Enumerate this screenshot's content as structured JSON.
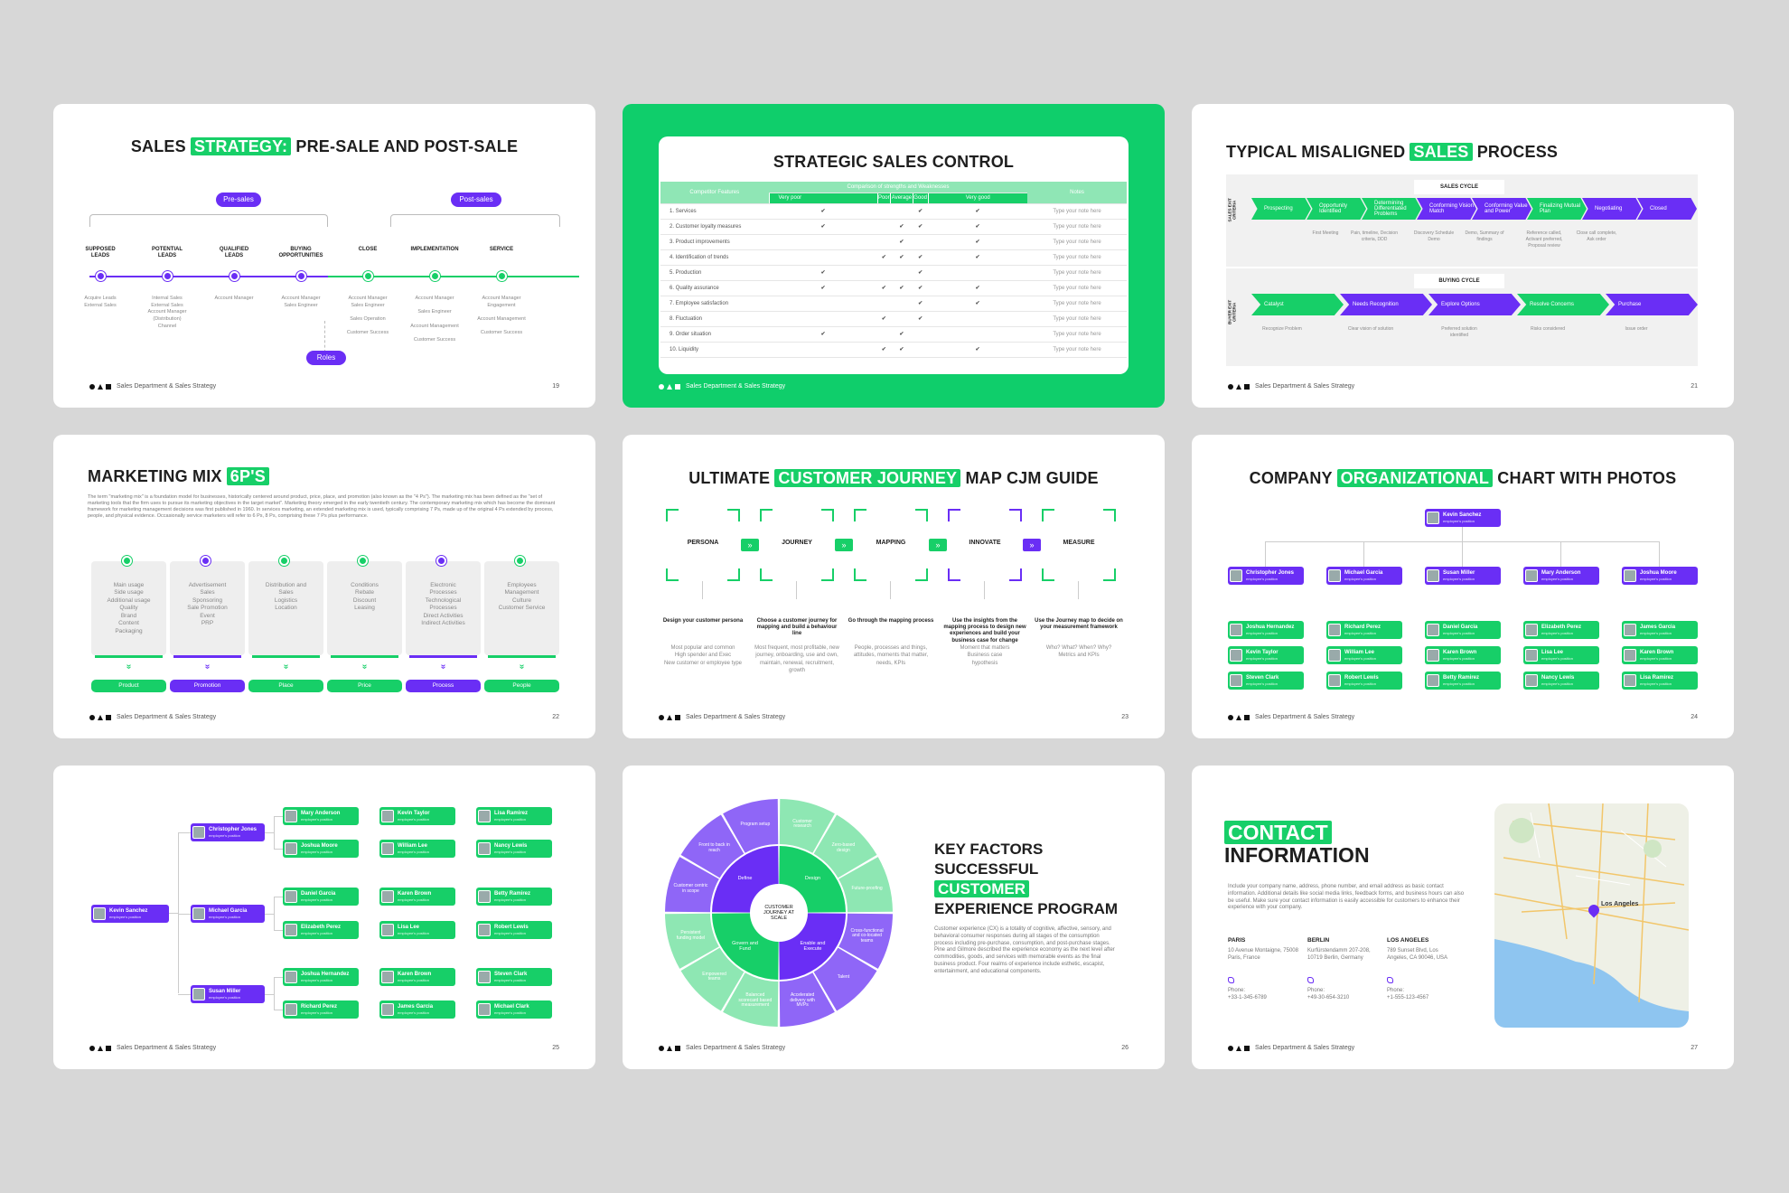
{
  "footer_label": "Sales Department & Sales Strategy",
  "colors": {
    "green": "#17cf68",
    "purple": "#6a2ef5",
    "bg": "#d7d7d7"
  },
  "s1": {
    "title_pre": "SALES ",
    "title_hl": "STRATEGY:",
    "title_post": " PRE-SALE AND POST-SALE",
    "presales": "Pre-sales",
    "postsales": "Post-sales",
    "roles": "Roles",
    "steps": [
      {
        "n": "1",
        "title": "SUPPOSED\nLEADS",
        "desc": "Acquire Leads\nExternal Sales"
      },
      {
        "n": "2",
        "title": "POTENTIAL\nLEADS",
        "desc": "Internal Sales\nExternal Sales\nAccount Manager\n(Distribution)\nChannel"
      },
      {
        "n": "3",
        "title": "QUALIFIED\nLEADS",
        "desc": "Account Manager"
      },
      {
        "n": "4",
        "title": "BUYING\nOPPORTUNITIES",
        "desc": "Account Manager\nSales Engineer"
      },
      {
        "n": "5",
        "title": "CLOSE",
        "desc": "Account Manager\nSales Engineer\n\nSales Operation\n\nCustomer Success"
      },
      {
        "n": "6",
        "title": "IMPLEMENTATION",
        "desc": "Account Manager\n\nSales Engineer\n\nAccount Management\n\nCustomer Success"
      },
      {
        "n": "7",
        "title": "SERVICE",
        "desc": "Account Manager\nEngagement\n\nAccount Management\n\nCustomer Success"
      }
    ],
    "page": "19"
  },
  "s2": {
    "title": "STRATEGIC SALES CONTROL",
    "head_features": "Competitor Features",
    "head_compare": "Comparison of strengths and Weaknesses",
    "head_notes": "Notes",
    "levels": [
      "Very poor",
      "Poor",
      "Average",
      "Good",
      "Very good"
    ],
    "note": "Type your note here",
    "check": "✔",
    "rows": [
      {
        "name": "1. Services",
        "checks": [
          1,
          0,
          0,
          1,
          1
        ]
      },
      {
        "name": "2. Customer loyalty measures",
        "checks": [
          1,
          0,
          1,
          1,
          1
        ]
      },
      {
        "name": "3. Product improvements",
        "checks": [
          0,
          0,
          1,
          0,
          1
        ]
      },
      {
        "name": "4. Identification of trends",
        "checks": [
          0,
          1,
          1,
          1,
          1
        ]
      },
      {
        "name": "5. Production",
        "checks": [
          1,
          0,
          0,
          1,
          0
        ]
      },
      {
        "name": "6. Quality assurance",
        "checks": [
          1,
          1,
          1,
          1,
          1
        ]
      },
      {
        "name": "7. Employee satisfaction",
        "checks": [
          0,
          0,
          0,
          1,
          1
        ]
      },
      {
        "name": "8. Fluctuation",
        "checks": [
          0,
          1,
          0,
          1,
          0
        ]
      },
      {
        "name": "9. Order situation",
        "checks": [
          1,
          0,
          1,
          0,
          0
        ]
      },
      {
        "name": "10. Liquidity",
        "checks": [
          0,
          1,
          1,
          0,
          1
        ]
      }
    ]
  },
  "s3": {
    "title_pre": "TYPICAL MISALIGNED ",
    "title_hl": "SALES",
    "title_post": " PROCESS",
    "sales_cycle": "SALES CYCLE",
    "buying_cycle": "BUYING CYCLE",
    "sales_exit": "SALES EXIT CRITERIA",
    "buyer_exit": "BUYER EXIT CRITERIA",
    "sales_steps": [
      "Prospecting",
      "Opportunity Identified",
      "Determining Differentiated Problems",
      "Conforming Vision Match",
      "Conforming Value and Power",
      "Finalizing Mutual Plan",
      "Negotiating",
      "Closed"
    ],
    "sales_notes": [
      "First Meeting",
      "Pain, timeline, Decision criteria, DDD",
      "Discovery Schedule Demo",
      "Demo, Summary of findings",
      "Reference called, Activant preferred, Proposal review",
      "Close call complete, Ask order"
    ],
    "buy_steps": [
      "Catalyst",
      "Needs Recognition",
      "Explore Options",
      "Resolve Concerns",
      "Purchase"
    ],
    "buy_notes": [
      "Recognize Problem",
      "Clear vision of solution",
      "Preferred solution identified",
      "Risks considered",
      "Issue order"
    ],
    "page": "21"
  },
  "s4": {
    "title": "MARKETING MIX ",
    "title_hl": "6P'S",
    "intro": "The term \"marketing mix\" is a foundation model for businesses, historically centered around product, price, place, and promotion (also known as the \"4 Ps\"). The marketing mix has been defined as the \"set of marketing tools that the firm uses to pursue its marketing objectives in the target market\". Marketing theory emerged in the early twentieth century. The contemporary marketing mix which has become the dominant framework for marketing management decisions was first published in 1960. In services marketing, an extended marketing mix is used, typically comprising 7 Ps, made up of the original 4 Ps extended by process, people, and physical evidence. Occasionally service marketers will refer to 6 Ps, 8 Ps, comprising these 7 Ps plus performance.",
    "cols": [
      {
        "n": "1",
        "items": "Main usage\nSide usage\nAdditional usage\nQuality\nBrand\nContent\nPackaging",
        "label": "Product"
      },
      {
        "n": "2",
        "items": "Advertisement\nSales\nSponsoring\nSale Promotion\nEvent\nPRP",
        "label": "Promotion"
      },
      {
        "n": "3",
        "items": "Distribution and\nSales\nLogistics\nLocation",
        "label": "Place"
      },
      {
        "n": "4",
        "items": "Conditions\nRebate\nDiscount\nLeasing",
        "label": "Price"
      },
      {
        "n": "5",
        "items": "Electronic\nProcesses\nTechnological\nProcesses\nDirect Activities\nIndirect Activities",
        "label": "Process"
      },
      {
        "n": "6",
        "items": "Employees\nManagement\nCulture\nCustomer Service",
        "label": "People"
      }
    ],
    "chevrons": "»",
    "page": "22"
  },
  "s5": {
    "title_pre": "ULTIMATE ",
    "title_hl": "CUSTOMER JOURNEY",
    "title_post": " MAP CJM GUIDE",
    "arrow": "»",
    "steps": [
      {
        "name": "PERSONA",
        "bold": "Design your customer persona",
        "desc": "Most popular and common\nHigh spender and Exec\nNew customer or employee type"
      },
      {
        "name": "JOURNEY",
        "bold": "Choose a customer journey for mapping and build a behaviour line",
        "desc": "Most frequent, most profitable, new journey, onboarding, use and own, maintain, renewal, recruitment, growth"
      },
      {
        "name": "MAPPING",
        "bold": "Go through the mapping process",
        "desc": "People, processes and things, attitudes, moments that matter, needs, KPIs"
      },
      {
        "name": "INNOVATE",
        "bold": "Use the insights from the mapping process to design new experiences and build your business case for change",
        "desc": "Moment that matters\nBusiness case\nhypothesis"
      },
      {
        "name": "MEASURE",
        "bold": "Use the Journey map to decide on your measurement framework",
        "desc": "Who? What? When? Why?\nMetrics and KPIs"
      }
    ],
    "page": "23"
  },
  "s6": {
    "title_pre": "COMPANY ",
    "title_hl": "ORGANIZATIONAL",
    "title_post": " CHART WITH PHOTOS",
    "position": "employee's position",
    "top": "Kevin Sanchez",
    "heads": [
      "Christopher Jones",
      "Michael Garcia",
      "Susan Miller",
      "Mary Anderson",
      "Joshua Moore"
    ],
    "members": [
      [
        "Joshua Hernandez",
        "Kevin Taylor",
        "Steven Clark"
      ],
      [
        "Richard Perez",
        "William Lee",
        "Robert Lewis"
      ],
      [
        "Daniel Garcia",
        "Karen Brown",
        "Betty Ramirez"
      ],
      [
        "Elizabeth Perez",
        "Lisa Lee",
        "Nancy Lewis"
      ],
      [
        "James Garcia",
        "Karen Brown",
        "Lisa Ramirez"
      ]
    ],
    "page": "24"
  },
  "s7": {
    "position": "employee's position",
    "root": "Kevin Sanchez",
    "mids": [
      "Christopher Jones",
      "Michael Garcia",
      "Susan Miller"
    ],
    "leaves": [
      [
        "Mary Anderson",
        "Kevin Taylor",
        "Lisa Ramirez"
      ],
      [
        "Joshua Moore",
        "William Lee",
        "Nancy Lewis"
      ],
      [
        "Daniel Garcia",
        "Karen Brown",
        "Betty Ramirez"
      ],
      [
        "Elizabeth Perez",
        "Lisa Lee",
        "Robert Lewis"
      ],
      [
        "Joshua Hernandez",
        "Karen Brown",
        "Steven Clark"
      ],
      [
        "Richard Perez",
        "James Garcia",
        "Michael Clark"
      ]
    ],
    "page": "25"
  },
  "s8": {
    "title_l1": "KEY FACTORS",
    "title_l2": "SUCCESSFUL",
    "title_hl": "CUSTOMER",
    "title_l4": "EXPERIENCE PROGRAM",
    "desc": "Customer experience (CX) is a totality of cognitive, affective, sensory, and behavioral consumer responses during all stages of the consumption process including pre-purchase, consumption, and post-purchase stages. Pine and Gilmore described the experience economy as the next level after commodities, goods, and services with memorable events as the final business product. Four realms of experience include esthetic, escapist, entertainment, and educational components.",
    "center": "CUSTOMER JOURNEY AT SCALE",
    "inner": [
      "Define",
      "Design",
      "Enable and Execute",
      "Govern and Fund"
    ],
    "outer": [
      "Customer research",
      "Zero-based design",
      "Future-proofing",
      "Cross-functional and co-located teams",
      "Talent",
      "Accelerated delivery with MVPs",
      "Balanced scorecard based measurement",
      "Empowered teams",
      "Persistent funding model",
      "Customer centric in scope",
      "Front to back in reach",
      "Program setup"
    ],
    "page": "26"
  },
  "s9": {
    "title_hl": "CONTACT",
    "title_l2": "INFORMATION",
    "desc": "Include your company name, address, phone number, and email address as basic contact information. Additional details like social media links, feedback forms, and business hours can also be useful. Make sure your contact information is easily accessible for customers to enhance their experience with your company.",
    "offices": [
      {
        "city": "PARIS",
        "addr": "10 Avenue Montaigne, 75008 Paris, France",
        "phone_label": "Phone:",
        "phone": "+33-1-345-6789"
      },
      {
        "city": "BERLIN",
        "addr": "Kurfürstendamm 207-208, 10719 Berlin, Germany",
        "phone_label": "Phone:",
        "phone": "+49-30-654-3210"
      },
      {
        "city": "LOS ANGELES",
        "addr": "789 Sunset Blvd, Los Angeles, CA 90046, USA",
        "phone_label": "Phone:",
        "phone": "+1-555-123-4567"
      }
    ],
    "map_city": "Los Angeles",
    "page": "27"
  }
}
